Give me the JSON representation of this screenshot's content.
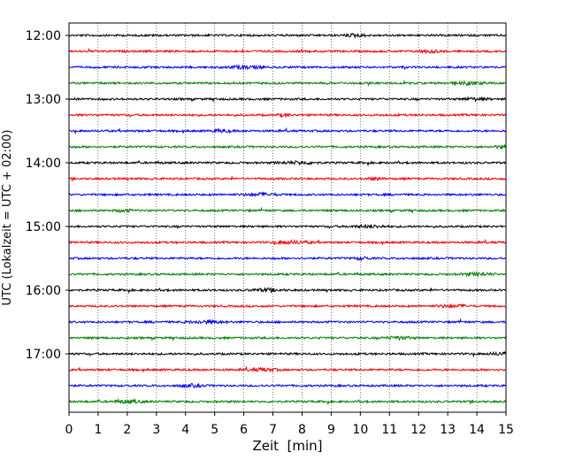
{
  "chart_data": {
    "type": "line",
    "title": "",
    "xlabel": "Zeit  [min]",
    "ylabel": "UTC (Lokalzeit = UTC + 02:00)",
    "xlim": [
      0,
      15
    ],
    "x_ticks": [
      0,
      1,
      2,
      3,
      4,
      5,
      6,
      7,
      8,
      9,
      10,
      11,
      12,
      13,
      14,
      15
    ],
    "x_tick_labels": [
      "0",
      "1",
      "2",
      "3",
      "4",
      "5",
      "6",
      "7",
      "8",
      "9",
      "10",
      "11",
      "12",
      "13",
      "14",
      "15"
    ],
    "y_tick_labels": [
      "12:00",
      "13:00",
      "14:00",
      "15:00",
      "16:00",
      "17:00"
    ],
    "grid": "vertical dotted lines at each minute",
    "trace_interval_min": 15,
    "traces": [
      {
        "start": "12:00",
        "color": "#000000"
      },
      {
        "start": "12:15",
        "color": "#ff0000"
      },
      {
        "start": "12:30",
        "color": "#0000ff"
      },
      {
        "start": "12:45",
        "color": "#008000"
      },
      {
        "start": "13:00",
        "color": "#000000"
      },
      {
        "start": "13:15",
        "color": "#ff0000"
      },
      {
        "start": "13:30",
        "color": "#0000ff"
      },
      {
        "start": "13:45",
        "color": "#008000"
      },
      {
        "start": "14:00",
        "color": "#000000"
      },
      {
        "start": "14:15",
        "color": "#ff0000"
      },
      {
        "start": "14:30",
        "color": "#0000ff"
      },
      {
        "start": "14:45",
        "color": "#008000"
      },
      {
        "start": "15:00",
        "color": "#000000"
      },
      {
        "start": "15:15",
        "color": "#ff0000"
      },
      {
        "start": "15:30",
        "color": "#0000ff"
      },
      {
        "start": "15:45",
        "color": "#008000"
      },
      {
        "start": "16:00",
        "color": "#000000"
      },
      {
        "start": "16:15",
        "color": "#ff0000"
      },
      {
        "start": "16:30",
        "color": "#0000ff"
      },
      {
        "start": "16:45",
        "color": "#008000"
      },
      {
        "start": "17:00",
        "color": "#000000"
      },
      {
        "start": "17:15",
        "color": "#ff0000"
      },
      {
        "start": "17:30",
        "color": "#0000ff"
      },
      {
        "start": "17:45",
        "color": "#008000"
      }
    ]
  }
}
